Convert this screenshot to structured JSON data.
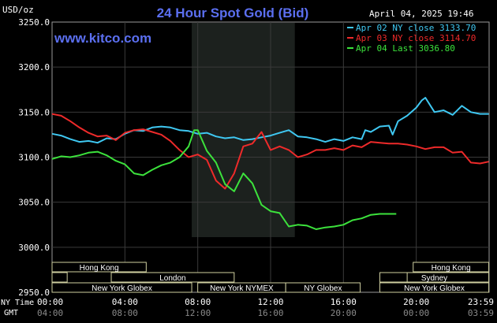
{
  "chart_data": {
    "type": "line",
    "title": "24 Hour Spot Gold (Bid)",
    "site": "www.kitco.com",
    "timestamp": "April 04, 2025 19:46",
    "ylabel": "USD/oz",
    "ylim": [
      2950,
      3250
    ],
    "yticks": [
      "3250.0",
      "3200.0",
      "3150.0",
      "3100.0",
      "3050.0",
      "3000.0",
      "2950.0"
    ],
    "xlim": [
      0,
      24
    ],
    "xticks_ny": [
      "00:00",
      "04:00",
      "08:00",
      "12:00",
      "16:00",
      "20:00",
      "23:59"
    ],
    "xticks_gmt": [
      "04:00",
      "08:00",
      "12:00",
      "16:00",
      "20:00",
      "00:00",
      "03:59"
    ],
    "axis_row_labels": {
      "ny": "NY Time",
      "gmt": "GMT"
    },
    "legend_position": "top-right",
    "series": [
      {
        "name": "Apr 02 NY close 3133.70",
        "color": "#3fc8f2",
        "points": [
          [
            0,
            3126
          ],
          [
            0.5,
            3124
          ],
          [
            1,
            3120
          ],
          [
            1.5,
            3117
          ],
          [
            2,
            3118
          ],
          [
            2.5,
            3116
          ],
          [
            3,
            3121
          ],
          [
            3.5,
            3120
          ],
          [
            4,
            3126
          ],
          [
            4.5,
            3130
          ],
          [
            5,
            3129
          ],
          [
            5.5,
            3133
          ],
          [
            6,
            3134
          ],
          [
            6.5,
            3133
          ],
          [
            7,
            3130
          ],
          [
            7.5,
            3129
          ],
          [
            8,
            3126
          ],
          [
            8.5,
            3127
          ],
          [
            9,
            3123
          ],
          [
            9.5,
            3121
          ],
          [
            10,
            3122
          ],
          [
            10.5,
            3119
          ],
          [
            11,
            3120
          ],
          [
            11.5,
            3122
          ],
          [
            12,
            3124
          ],
          [
            12.5,
            3127
          ],
          [
            13,
            3130
          ],
          [
            13.5,
            3123
          ],
          [
            14,
            3122
          ],
          [
            14.5,
            3120
          ],
          [
            15,
            3117
          ],
          [
            15.5,
            3120
          ],
          [
            16,
            3118
          ],
          [
            16.5,
            3122
          ],
          [
            17,
            3120
          ],
          [
            17.2,
            3130
          ],
          [
            17.5,
            3128
          ],
          [
            18,
            3134
          ],
          [
            18.5,
            3135
          ],
          [
            18.7,
            3125
          ],
          [
            19,
            3140
          ],
          [
            19.5,
            3146
          ],
          [
            20,
            3155
          ],
          [
            20.3,
            3163
          ],
          [
            20.5,
            3166
          ],
          [
            21,
            3150
          ],
          [
            21.5,
            3152
          ],
          [
            22,
            3147
          ],
          [
            22.5,
            3157
          ],
          [
            23,
            3150
          ],
          [
            23.5,
            3148
          ],
          [
            23.98,
            3148
          ]
        ]
      },
      {
        "name": "Apr 03 NY close 3114.70",
        "color": "#ee2a2a",
        "points": [
          [
            0,
            3148
          ],
          [
            0.5,
            3146
          ],
          [
            1,
            3140
          ],
          [
            1.5,
            3133
          ],
          [
            2,
            3127
          ],
          [
            2.5,
            3123
          ],
          [
            3,
            3124
          ],
          [
            3.5,
            3119
          ],
          [
            4,
            3127
          ],
          [
            4.5,
            3130
          ],
          [
            5,
            3131
          ],
          [
            5.5,
            3128
          ],
          [
            6,
            3125
          ],
          [
            6.5,
            3118
          ],
          [
            7,
            3108
          ],
          [
            7.5,
            3100
          ],
          [
            8,
            3103
          ],
          [
            8.5,
            3097
          ],
          [
            9,
            3074
          ],
          [
            9.5,
            3065
          ],
          [
            10,
            3082
          ],
          [
            10.5,
            3112
          ],
          [
            11,
            3115
          ],
          [
            11.5,
            3128
          ],
          [
            12,
            3108
          ],
          [
            12.5,
            3112
          ],
          [
            13,
            3108
          ],
          [
            13.5,
            3100
          ],
          [
            14,
            3103
          ],
          [
            14.5,
            3108
          ],
          [
            15,
            3108
          ],
          [
            15.5,
            3110
          ],
          [
            16,
            3108
          ],
          [
            16.5,
            3113
          ],
          [
            17,
            3111
          ],
          [
            17.5,
            3117
          ],
          [
            18,
            3116
          ],
          [
            18.5,
            3115
          ],
          [
            19,
            3115
          ],
          [
            19.5,
            3114
          ],
          [
            20,
            3112
          ],
          [
            20.5,
            3109
          ],
          [
            21,
            3111
          ],
          [
            21.5,
            3111
          ],
          [
            22,
            3105
          ],
          [
            22.5,
            3106
          ],
          [
            23,
            3094
          ],
          [
            23.5,
            3093
          ],
          [
            23.98,
            3095
          ]
        ]
      },
      {
        "name": "Apr 04 Last 3036.80",
        "color": "#3ce23c",
        "points": [
          [
            0,
            3098
          ],
          [
            0.5,
            3101
          ],
          [
            1,
            3100
          ],
          [
            1.5,
            3102
          ],
          [
            2,
            3105
          ],
          [
            2.5,
            3106
          ],
          [
            3,
            3102
          ],
          [
            3.5,
            3096
          ],
          [
            4,
            3092
          ],
          [
            4.5,
            3082
          ],
          [
            5,
            3080
          ],
          [
            5.5,
            3086
          ],
          [
            6,
            3091
          ],
          [
            6.5,
            3094
          ],
          [
            7,
            3100
          ],
          [
            7.5,
            3112
          ],
          [
            7.8,
            3130
          ],
          [
            8,
            3130
          ],
          [
            8.5,
            3107
          ],
          [
            9,
            3094
          ],
          [
            9.5,
            3070
          ],
          [
            10,
            3062
          ],
          [
            10.5,
            3082
          ],
          [
            11,
            3071
          ],
          [
            11.5,
            3047
          ],
          [
            12,
            3040
          ],
          [
            12.5,
            3038
          ],
          [
            13,
            3023
          ],
          [
            13.5,
            3025
          ],
          [
            14,
            3024
          ],
          [
            14.5,
            3020
          ],
          [
            15,
            3022
          ],
          [
            15.5,
            3023
          ],
          [
            16,
            3025
          ],
          [
            16.5,
            3030
          ],
          [
            17,
            3032
          ],
          [
            17.5,
            3036
          ],
          [
            18,
            3037
          ],
          [
            18.5,
            3037
          ],
          [
            18.9,
            3037
          ]
        ]
      }
    ]
  },
  "sessions": {
    "overnight_highlight_ny": [
      7.67,
      13.33
    ],
    "bars": [
      {
        "label": "Hong Kong",
        "row": 0,
        "start": 0,
        "end": 5.17
      },
      {
        "label": "",
        "row": 1,
        "start": 0,
        "end": 0.83
      },
      {
        "label": "London",
        "row": 1,
        "start": 3.25,
        "end": 10.0
      },
      {
        "label": "New York Globex",
        "row": 2,
        "start": 0,
        "end": 7.67
      },
      {
        "label": "New York NYMEX",
        "row": 2,
        "start": 8.0,
        "end": 12.83
      },
      {
        "label": "NY Globex",
        "row": 2,
        "start": 12.83,
        "end": 16.92
      },
      {
        "label": "Hong Kong",
        "row": 0,
        "start": 19.83,
        "end": 23.98
      },
      {
        "label": "Sydney",
        "row": 1,
        "start": 18.0,
        "end": 23.98
      },
      {
        "label": "New York Globex",
        "row": 2,
        "start": 18.0,
        "end": 23.98
      },
      {
        "label": "",
        "row": 1,
        "start": 18.0,
        "end": 19.5
      }
    ]
  }
}
